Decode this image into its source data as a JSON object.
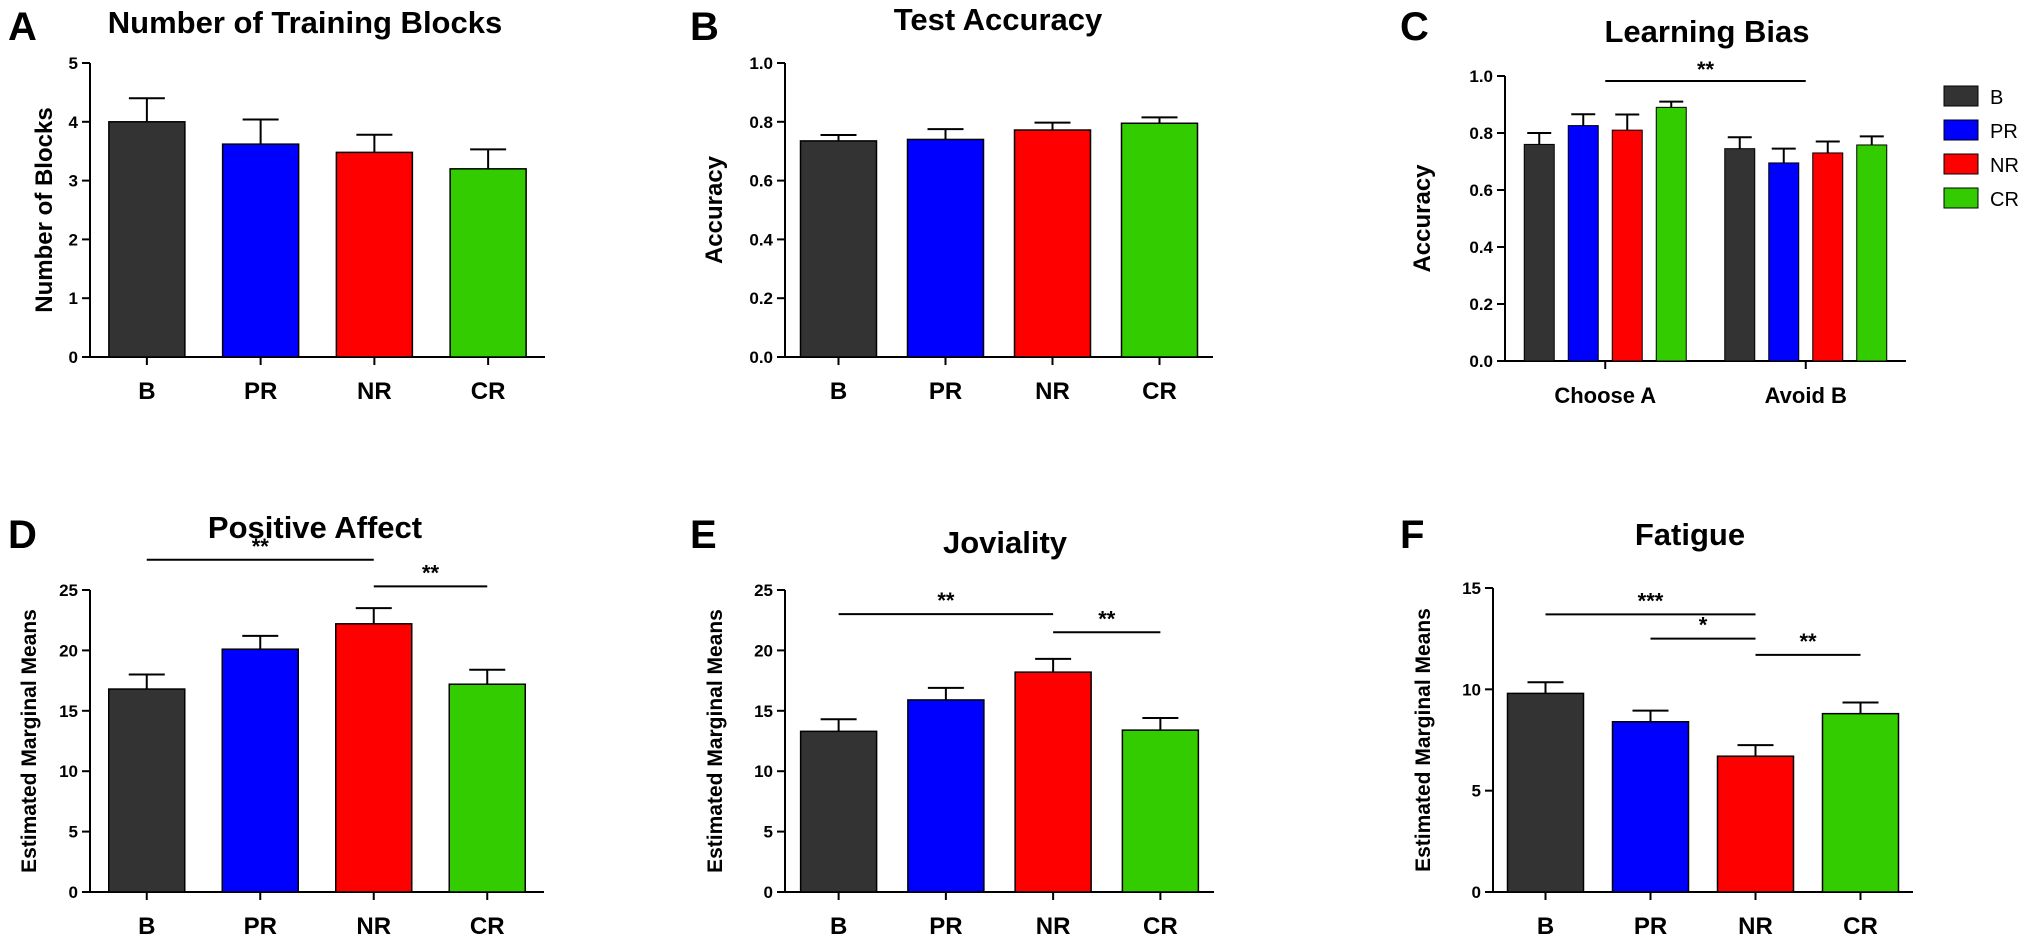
{
  "colors": {
    "B": "#333333",
    "PR": "#0000FF",
    "NR": "#FF0000",
    "CR": "#33CC00"
  },
  "legend": [
    "B",
    "PR",
    "NR",
    "CR"
  ],
  "chart_data": [
    {
      "panel": "A",
      "type": "bar",
      "title": "Number of Training Blocks",
      "xlabel": "",
      "ylabel": "Number of Blocks",
      "categories": [
        "B",
        "PR",
        "NR",
        "CR"
      ],
      "values": [
        4.0,
        3.62,
        3.48,
        3.2
      ],
      "errors": [
        0.4,
        0.42,
        0.3,
        0.33
      ],
      "ylim": [
        0,
        5
      ],
      "yticks": [
        "0",
        "1",
        "2",
        "3",
        "4",
        "5"
      ],
      "significance": []
    },
    {
      "panel": "B",
      "type": "bar",
      "title": "Test Accuracy",
      "xlabel": "",
      "ylabel": "Accuracy",
      "categories": [
        "B",
        "PR",
        "NR",
        "CR"
      ],
      "values": [
        0.735,
        0.74,
        0.772,
        0.795
      ],
      "errors": [
        0.02,
        0.035,
        0.025,
        0.02
      ],
      "ylim": [
        0,
        1.0
      ],
      "yticks": [
        "0.0",
        "0.2",
        "0.4",
        "0.6",
        "0.8",
        "1.0"
      ],
      "significance": []
    },
    {
      "panel": "C",
      "type": "bar",
      "title": "Learning Bias",
      "xlabel": "",
      "ylabel": "Accuracy",
      "categories": [
        "Choose A",
        "Avoid B"
      ],
      "series": [
        {
          "name": "B",
          "values": [
            0.76,
            0.745
          ],
          "errors": [
            0.04,
            0.04
          ]
        },
        {
          "name": "PR",
          "values": [
            0.826,
            0.695
          ],
          "errors": [
            0.04,
            0.05
          ]
        },
        {
          "name": "NR",
          "values": [
            0.81,
            0.73
          ],
          "errors": [
            0.055,
            0.04
          ]
        },
        {
          "name": "CR",
          "values": [
            0.89,
            0.758
          ],
          "errors": [
            0.02,
            0.03
          ]
        }
      ],
      "ylim": [
        0,
        1.0
      ],
      "yticks": [
        "0.0",
        "0.2",
        "0.4",
        "0.6",
        "0.8",
        "1.0"
      ],
      "significance": [
        {
          "from": "Choose A",
          "to": "Avoid B",
          "label": "**"
        }
      ]
    },
    {
      "panel": "D",
      "type": "bar",
      "title": "Positive Affect",
      "xlabel": "",
      "ylabel": "Estimated Marginal Means",
      "categories": [
        "B",
        "PR",
        "NR",
        "CR"
      ],
      "values": [
        16.8,
        20.1,
        22.2,
        17.2
      ],
      "errors": [
        1.2,
        1.1,
        1.3,
        1.2
      ],
      "ylim": [
        0,
        25
      ],
      "yticks": [
        "0",
        "5",
        "10",
        "15",
        "20",
        "25"
      ],
      "significance": [
        {
          "from": "B",
          "to": "NR",
          "label": "**",
          "level": 27.5
        },
        {
          "from": "NR",
          "to": "CR",
          "label": "**",
          "level": 25.3
        }
      ]
    },
    {
      "panel": "E",
      "type": "bar",
      "title": "Joviality",
      "xlabel": "",
      "ylabel": "Estimated Marginal Means",
      "categories": [
        "B",
        "PR",
        "NR",
        "CR"
      ],
      "values": [
        13.3,
        15.9,
        18.2,
        13.4
      ],
      "errors": [
        1.0,
        1.0,
        1.1,
        1.0
      ],
      "ylim": [
        0,
        25
      ],
      "yticks": [
        "0",
        "5",
        "10",
        "15",
        "20",
        "25"
      ],
      "significance": [
        {
          "from": "B",
          "to": "NR",
          "label": "**",
          "level": 23.0
        },
        {
          "from": "NR",
          "to": "CR",
          "label": "**",
          "level": 21.5
        }
      ]
    },
    {
      "panel": "F",
      "type": "bar",
      "title": "Fatigue",
      "xlabel": "",
      "ylabel": "Estimated Marginal Means",
      "categories": [
        "B",
        "PR",
        "NR",
        "CR"
      ],
      "values": [
        9.8,
        8.4,
        6.7,
        8.8
      ],
      "errors": [
        0.55,
        0.55,
        0.55,
        0.55
      ],
      "ylim": [
        0,
        15
      ],
      "yticks": [
        "0",
        "5",
        "10",
        "15"
      ],
      "significance": [
        {
          "from": "B",
          "to": "NR",
          "label": "***",
          "level": 13.7
        },
        {
          "from": "PR",
          "to": "NR",
          "label": "*",
          "level": 12.5
        },
        {
          "from": "NR",
          "to": "CR",
          "label": "**",
          "level": 11.7
        }
      ]
    }
  ]
}
